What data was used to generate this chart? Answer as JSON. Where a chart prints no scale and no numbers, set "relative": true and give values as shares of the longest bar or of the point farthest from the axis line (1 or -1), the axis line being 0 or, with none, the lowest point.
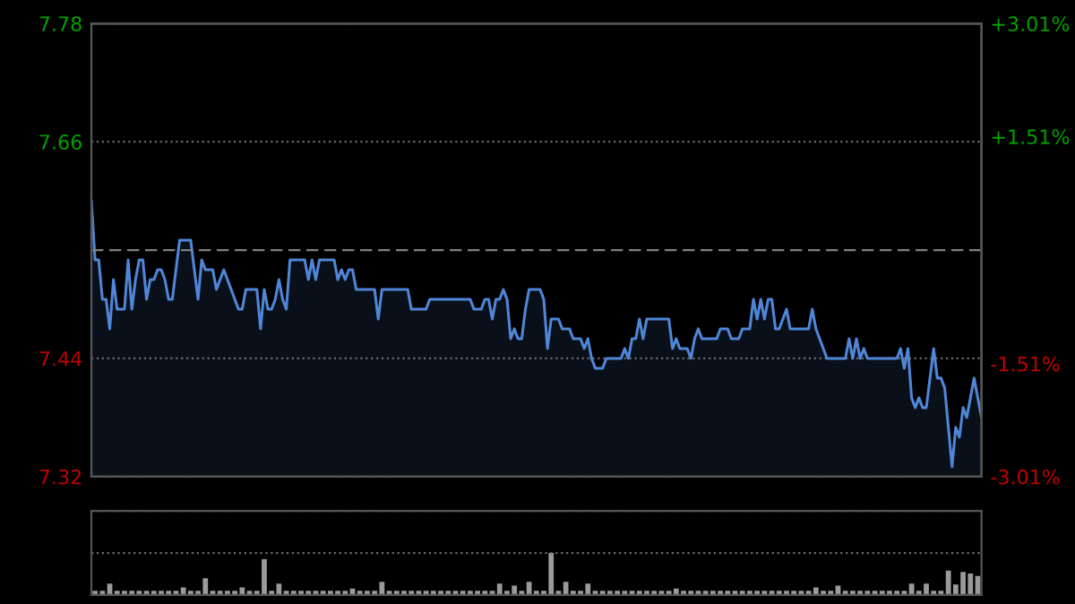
{
  "chart_data": [
    {
      "type": "area",
      "categories": [
        null,
        null,
        null,
        null,
        null,
        null,
        null,
        null,
        null,
        null,
        null,
        null,
        null,
        null,
        null,
        null,
        null,
        null,
        null,
        null,
        null,
        null,
        null,
        null,
        null,
        null,
        null,
        null,
        null,
        null,
        null,
        null,
        null,
        null,
        null,
        null,
        null,
        null,
        null,
        null,
        null,
        null,
        null,
        null,
        null,
        null,
        null,
        null,
        null,
        null,
        null,
        null,
        null,
        null,
        null,
        null,
        null,
        null,
        null,
        null,
        null,
        null,
        null,
        null,
        null,
        null,
        null,
        null,
        null,
        null,
        null,
        null,
        null,
        null,
        null,
        null,
        null,
        null,
        null,
        null,
        null,
        null,
        null,
        null,
        null,
        null,
        null,
        null,
        null,
        null,
        null,
        null,
        null,
        null,
        null,
        null,
        null,
        null,
        null,
        null,
        null,
        null,
        null,
        null,
        null,
        null,
        null,
        null,
        null,
        null,
        null,
        null,
        null,
        null,
        null,
        null,
        null,
        null,
        null,
        null,
        null,
        null,
        null,
        null,
        null,
        null,
        null,
        null,
        null,
        null,
        null,
        null,
        null,
        null,
        null,
        null,
        null,
        null,
        null,
        null,
        null,
        null,
        null,
        null,
        null,
        null,
        null,
        null,
        null,
        null,
        null,
        null,
        null,
        null,
        null,
        null,
        null,
        null,
        null,
        null,
        null,
        null,
        null,
        null,
        null,
        null,
        null,
        null,
        null,
        null,
        null,
        null,
        null,
        null,
        null,
        null,
        null,
        null,
        null,
        null,
        null,
        null,
        null,
        null,
        null,
        null,
        null,
        null,
        null,
        null,
        null,
        null,
        null,
        null,
        null,
        null,
        null,
        null,
        null,
        null,
        null,
        null,
        null,
        null,
        null,
        null,
        null,
        null,
        null,
        null,
        null,
        null,
        null,
        null,
        null,
        null,
        null,
        null,
        null,
        null,
        null,
        null,
        null,
        null,
        null,
        null,
        null,
        null,
        null,
        null,
        null,
        null,
        null,
        null,
        null,
        null,
        null,
        null,
        null,
        null,
        null,
        null,
        null
      ],
      "series": [
        {
          "color": "#4f86d8",
          "values": [
            7.6,
            7.54,
            7.54,
            7.5,
            7.5,
            7.47,
            7.52,
            7.49,
            7.49,
            7.49,
            7.54,
            7.49,
            7.52,
            7.54,
            7.54,
            7.5,
            7.52,
            7.52,
            7.53,
            7.53,
            7.52,
            7.5,
            7.5,
            7.53,
            7.56,
            7.56,
            7.56,
            7.56,
            7.53,
            7.5,
            7.54,
            7.53,
            7.53,
            7.53,
            7.51,
            7.52,
            7.53,
            7.52,
            7.51,
            7.5,
            7.49,
            7.49,
            7.51,
            7.51,
            7.51,
            7.51,
            7.47,
            7.51,
            7.49,
            7.49,
            7.5,
            7.52,
            7.5,
            7.49,
            7.54,
            7.54,
            7.54,
            7.54,
            7.54,
            7.52,
            7.54,
            7.52,
            7.54,
            7.54,
            7.54,
            7.54,
            7.54,
            7.52,
            7.53,
            7.52,
            7.53,
            7.53,
            7.51,
            7.51,
            7.51,
            7.51,
            7.51,
            7.51,
            7.48,
            7.51,
            7.51,
            7.51,
            7.51,
            7.51,
            7.51,
            7.51,
            7.51,
            7.49,
            7.49,
            7.49,
            7.49,
            7.49,
            7.5,
            7.5,
            7.5,
            7.5,
            7.5,
            7.5,
            7.5,
            7.5,
            7.5,
            7.5,
            7.5,
            7.5,
            7.49,
            7.49,
            7.49,
            7.5,
            7.5,
            7.48,
            7.5,
            7.5,
            7.51,
            7.5,
            7.46,
            7.47,
            7.46,
            7.46,
            7.49,
            7.51,
            7.51,
            7.51,
            7.51,
            7.5,
            7.45,
            7.48,
            7.48,
            7.48,
            7.47,
            7.47,
            7.47,
            7.46,
            7.46,
            7.46,
            7.45,
            7.46,
            7.44,
            7.43,
            7.43,
            7.43,
            7.44,
            7.44,
            7.44,
            7.44,
            7.44,
            7.45,
            7.44,
            7.46,
            7.46,
            7.48,
            7.46,
            7.48,
            7.48,
            7.48,
            7.48,
            7.48,
            7.48,
            7.48,
            7.45,
            7.46,
            7.45,
            7.45,
            7.45,
            7.44,
            7.46,
            7.47,
            7.46,
            7.46,
            7.46,
            7.46,
            7.46,
            7.47,
            7.47,
            7.47,
            7.46,
            7.46,
            7.46,
            7.47,
            7.47,
            7.47,
            7.5,
            7.48,
            7.5,
            7.48,
            7.5,
            7.5,
            7.47,
            7.47,
            7.48,
            7.49,
            7.47,
            7.47,
            7.47,
            7.47,
            7.47,
            7.47,
            7.49,
            7.47,
            7.46,
            7.45,
            7.44,
            7.44,
            7.44,
            7.44,
            7.44,
            7.44,
            7.46,
            7.44,
            7.46,
            7.44,
            7.45,
            7.44,
            7.44,
            7.44,
            7.44,
            7.44,
            7.44,
            7.44,
            7.44,
            7.44,
            7.45,
            7.43,
            7.45,
            7.4,
            7.39,
            7.4,
            7.39,
            7.39,
            7.42,
            7.45,
            7.42,
            7.42,
            7.41,
            7.37,
            7.33,
            7.37,
            7.36,
            7.39,
            7.38,
            7.4,
            7.42,
            7.4,
            7.38
          ]
        }
      ],
      "ylim": [
        7.32,
        7.78
      ],
      "yticks": [
        7.32,
        7.44,
        7.66,
        7.78
      ],
      "y2lim": [
        -3.01,
        3.01
      ],
      "y2ticks": [
        {
          "value": -3.01,
          "label": "-3.01%"
        },
        {
          "value": -1.51,
          "label": "-1.51%"
        },
        {
          "value": 1.51,
          "label": "+1.51%"
        },
        {
          "value": 3.01,
          "label": "+3.01%"
        }
      ],
      "ref_lines": [
        {
          "axis": "y",
          "value": 7.55,
          "color": "#808080",
          "line_style": "dashed"
        }
      ],
      "grid": "y"
    },
    {
      "type": "bar",
      "relative": true,
      "grid": "y",
      "color": "#9a9a9a",
      "categories": [
        null,
        null,
        null,
        null,
        null,
        null,
        null,
        null,
        null,
        null,
        null,
        null,
        null,
        null,
        null,
        null,
        null,
        null,
        null,
        null,
        null,
        null,
        null,
        null,
        null,
        null,
        null,
        null,
        null,
        null,
        null,
        null,
        null,
        null,
        null,
        null,
        null,
        null,
        null,
        null,
        null,
        null,
        null,
        null,
        null,
        null,
        null,
        null,
        null,
        null,
        null,
        null,
        null,
        null,
        null,
        null,
        null,
        null,
        null,
        null,
        null,
        null,
        null,
        null,
        null,
        null,
        null,
        null,
        null,
        null,
        null,
        null,
        null,
        null,
        null,
        null,
        null,
        null,
        null,
        null,
        null,
        null,
        null,
        null,
        null,
        null,
        null,
        null,
        null,
        null,
        null,
        null,
        null,
        null,
        null,
        null,
        null,
        null,
        null,
        null,
        null,
        null,
        null,
        null,
        null,
        null,
        null,
        null,
        null,
        null,
        null,
        null,
        null,
        null,
        null,
        null,
        null,
        null,
        null,
        null,
        null
      ],
      "values": [
        0.1,
        0.1,
        0.27,
        0.1,
        0.1,
        0.1,
        0.1,
        0.1,
        0.1,
        0.1,
        0.1,
        0.1,
        0.18,
        0.1,
        0.1,
        0.4,
        0.1,
        0.1,
        0.1,
        0.1,
        0.18,
        0.1,
        0.1,
        0.85,
        0.1,
        0.27,
        0.1,
        0.1,
        0.1,
        0.1,
        0.1,
        0.1,
        0.1,
        0.1,
        0.1,
        0.15,
        0.1,
        0.1,
        0.1,
        0.31,
        0.1,
        0.1,
        0.1,
        0.1,
        0.1,
        0.1,
        0.1,
        0.1,
        0.1,
        0.1,
        0.1,
        0.1,
        0.1,
        0.1,
        0.1,
        0.27,
        0.1,
        0.22,
        0.1,
        0.31,
        0.1,
        0.1,
        1.0,
        0.1,
        0.31,
        0.1,
        0.1,
        0.27,
        0.1,
        0.1,
        0.1,
        0.1,
        0.1,
        0.1,
        0.1,
        0.1,
        0.1,
        0.1,
        0.1,
        0.15,
        0.1,
        0.1,
        0.1,
        0.1,
        0.1,
        0.1,
        0.1,
        0.1,
        0.1,
        0.1,
        0.1,
        0.1,
        0.1,
        0.1,
        0.1,
        0.1,
        0.1,
        0.1,
        0.18,
        0.1,
        0.1,
        0.22,
        0.1,
        0.1,
        0.1,
        0.1,
        0.1,
        0.1,
        0.1,
        0.1,
        0.1,
        0.27,
        0.1,
        0.27,
        0.1,
        0.1,
        0.58,
        0.25,
        0.55,
        0.51,
        0.45
      ]
    }
  ]
}
